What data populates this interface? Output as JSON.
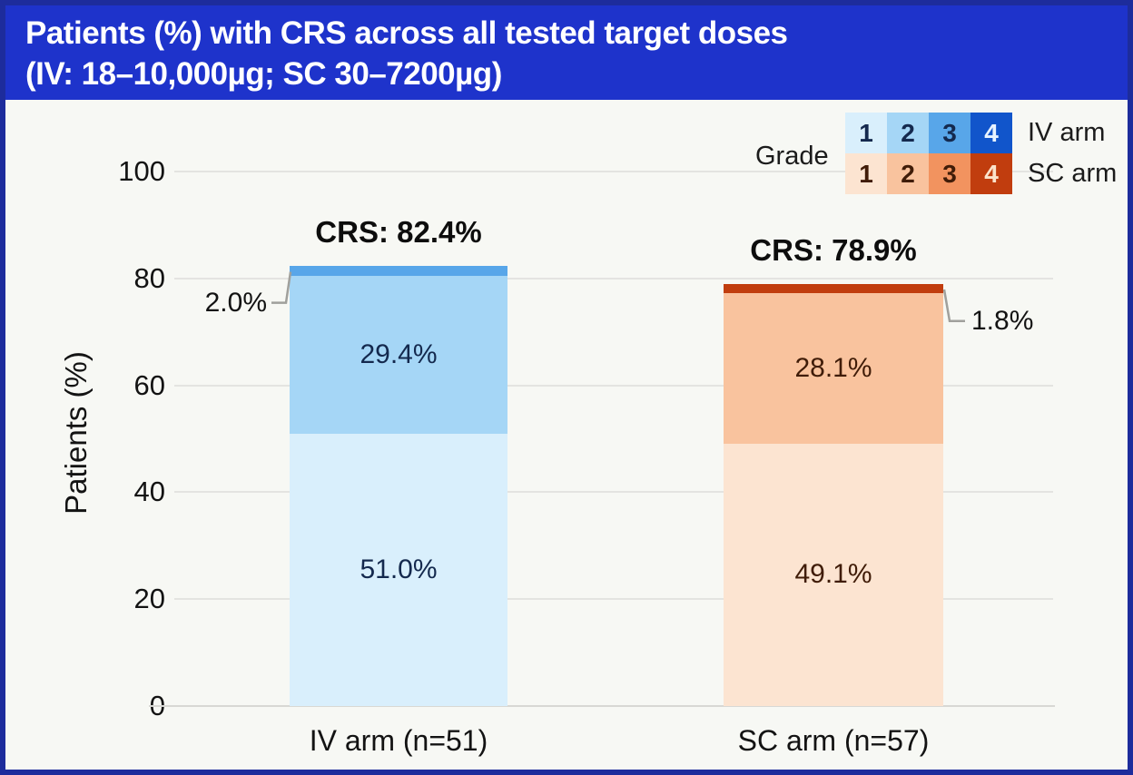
{
  "title": {
    "line1": "Patients (%) with CRS across all tested target doses",
    "line2": "(IV: 18–10,000µg; SC 30–7200µg)"
  },
  "colors": {
    "banner": "#1e33cb",
    "frame": "#1d2c9c",
    "grid": "#e4e4e1",
    "iv": [
      "#d9effc",
      "#a5d6f6",
      "#58a6e9",
      "#1155cb"
    ],
    "sc": [
      "#fce4d1",
      "#f9c39e",
      "#f2935f",
      "#c13d0e"
    ],
    "iv_segment_label": "#14294e",
    "sc_segment_label": "#401c08",
    "iv_grade4_text": "#e8f3ff",
    "sc_grade4_text": "#fbe3cb",
    "leader_line": "#a0a09c"
  },
  "legend": {
    "grade_label": "Grade",
    "rows": [
      {
        "arm_label": "IV arm",
        "cells": [
          "1",
          "2",
          "3",
          "4"
        ]
      },
      {
        "arm_label": "SC arm",
        "cells": [
          "1",
          "2",
          "3",
          "4"
        ]
      }
    ]
  },
  "chart_data": {
    "type": "bar",
    "stacked": true,
    "title": "Patients (%) with CRS across all tested target doses (IV: 18–10,000µg; SC 30–7200µg)",
    "xlabel": "",
    "ylabel": "Patients (%)",
    "ylim": [
      0,
      100
    ],
    "yticks": [
      0,
      20,
      40,
      60,
      80,
      100
    ],
    "grid": true,
    "legend_position": "top-right",
    "categories": [
      "IV arm (n=51)",
      "SC arm (n=57)"
    ],
    "bars": [
      {
        "category": "IV arm (n=51)",
        "arm": "iv",
        "total": 82.4,
        "total_label": "CRS: 82.4%",
        "segments": [
          {
            "value": 51.0,
            "label": "51.0%",
            "color_index": 0,
            "label_placement": "inside"
          },
          {
            "value": 29.4,
            "label": "29.4%",
            "color_index": 1,
            "label_placement": "inside"
          },
          {
            "value": 2.0,
            "label": "2.0%",
            "color_index": 2,
            "label_placement": "callout-left"
          }
        ]
      },
      {
        "category": "SC arm (n=57)",
        "arm": "sc",
        "total": 78.9,
        "total_label": "CRS: 78.9%",
        "segments": [
          {
            "value": 49.1,
            "label": "49.1%",
            "color_index": 0,
            "label_placement": "inside"
          },
          {
            "value": 28.1,
            "label": "28.1%",
            "color_index": 1,
            "label_placement": "inside"
          },
          {
            "value": 1.8,
            "label": "1.8%",
            "color_index": 3,
            "label_placement": "callout-right"
          }
        ]
      }
    ]
  }
}
